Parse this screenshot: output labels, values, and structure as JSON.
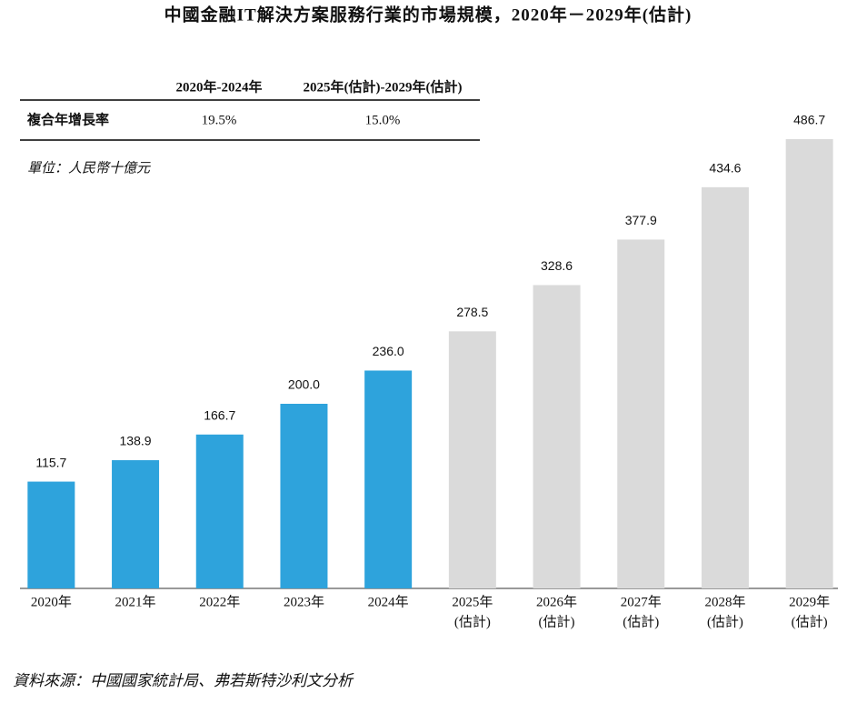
{
  "chart_data": {
    "type": "bar",
    "title": "中國金融IT解決方案服務行業的市場規模，2020年－2029年(估計)",
    "unit_note": "單位：人民幣十億元",
    "categories": [
      [
        "2020年"
      ],
      [
        "2021年"
      ],
      [
        "2022年"
      ],
      [
        "2023年"
      ],
      [
        "2024年"
      ],
      [
        "2025年",
        "(估計)"
      ],
      [
        "2026年",
        "(估計)"
      ],
      [
        "2027年",
        "(估計)"
      ],
      [
        "2028年",
        "(估計)"
      ],
      [
        "2029年",
        "(估計)"
      ]
    ],
    "values": [
      115.7,
      138.9,
      166.7,
      200.0,
      236.0,
      278.5,
      328.6,
      377.9,
      434.6,
      486.7
    ],
    "value_labels": [
      "115.7",
      "138.9",
      "166.7",
      "200.0",
      "236.0",
      "278.5",
      "328.6",
      "377.9",
      "434.6",
      "486.7"
    ],
    "colors": [
      "#2ea3dc",
      "#2ea3dc",
      "#2ea3dc",
      "#2ea3dc",
      "#2ea3dc",
      "#dadada",
      "#dadada",
      "#dadada",
      "#dadada",
      "#dadada"
    ]
  },
  "table": {
    "columns": [
      "2020年-2024年",
      "2025年(估計)-2029年(估計)"
    ],
    "rows": [
      [
        "複合年增長率",
        "19.5%",
        "15.0%"
      ]
    ]
  },
  "source": "資料來源：中國國家統計局、弗若斯特沙利文分析"
}
